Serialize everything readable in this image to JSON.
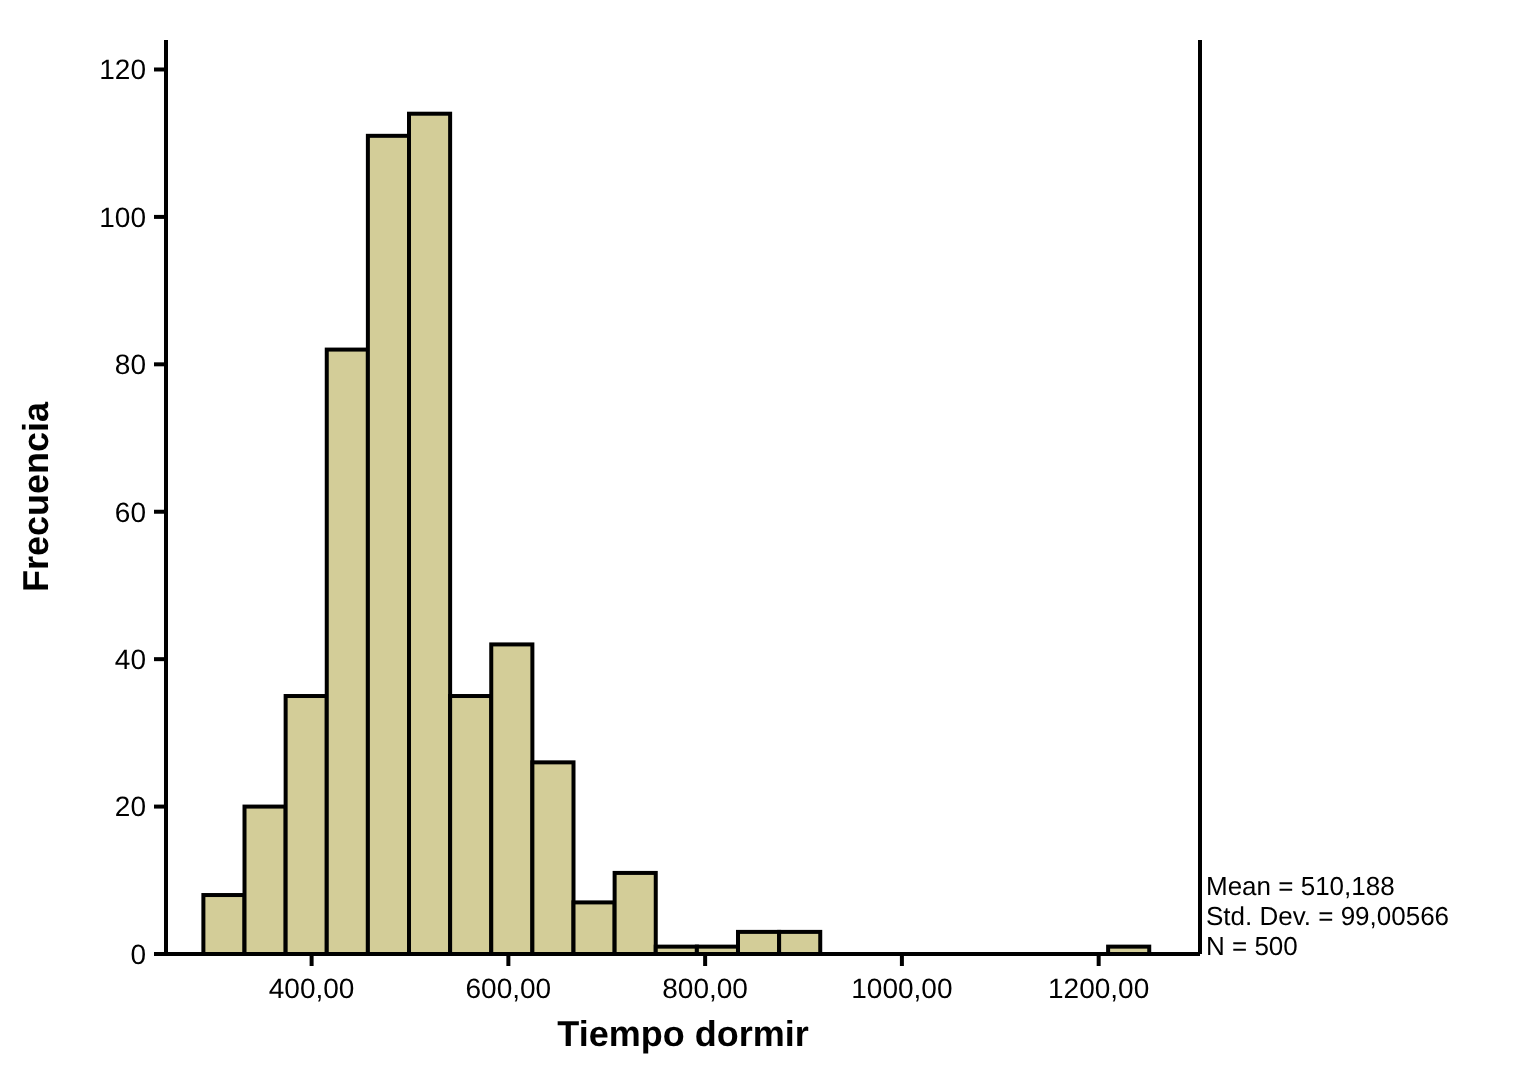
{
  "chart_data": {
    "type": "histogram",
    "xlabel": "Tiempo  dormir",
    "ylabel": "Frecuencia",
    "bins": [
      290,
      331.8,
      373.6,
      415.4,
      457.2,
      499,
      540.8,
      582.6,
      624.4,
      666.2,
      708,
      749.8,
      791.6,
      833.4,
      875.2,
      917,
      958.8,
      1000.6,
      1042.4,
      1084.2,
      1126,
      1167.8,
      1209.6,
      1251.4
    ],
    "values": [
      8,
      20,
      35,
      82,
      111,
      114,
      35,
      42,
      26,
      7,
      11,
      1,
      1,
      3,
      3,
      0,
      0,
      0,
      0,
      0,
      0,
      0,
      1
    ],
    "color": "#d3cd98",
    "xlim": [
      252,
      1303
    ],
    "xticks": [
      {
        "value": 400,
        "label": "400,00"
      },
      {
        "value": 600,
        "label": "600,00"
      },
      {
        "value": 800,
        "label": "800,00"
      },
      {
        "value": 1000,
        "label": "1000,00"
      },
      {
        "value": 1200,
        "label": "1200,00"
      }
    ],
    "ylim": [
      0,
      124
    ],
    "yticks": [
      0,
      20,
      40,
      60,
      80,
      100,
      120
    ],
    "annotations": [
      "Mean = 510,188",
      "Std. Dev. = 99,00566",
      "N = 500"
    ]
  }
}
